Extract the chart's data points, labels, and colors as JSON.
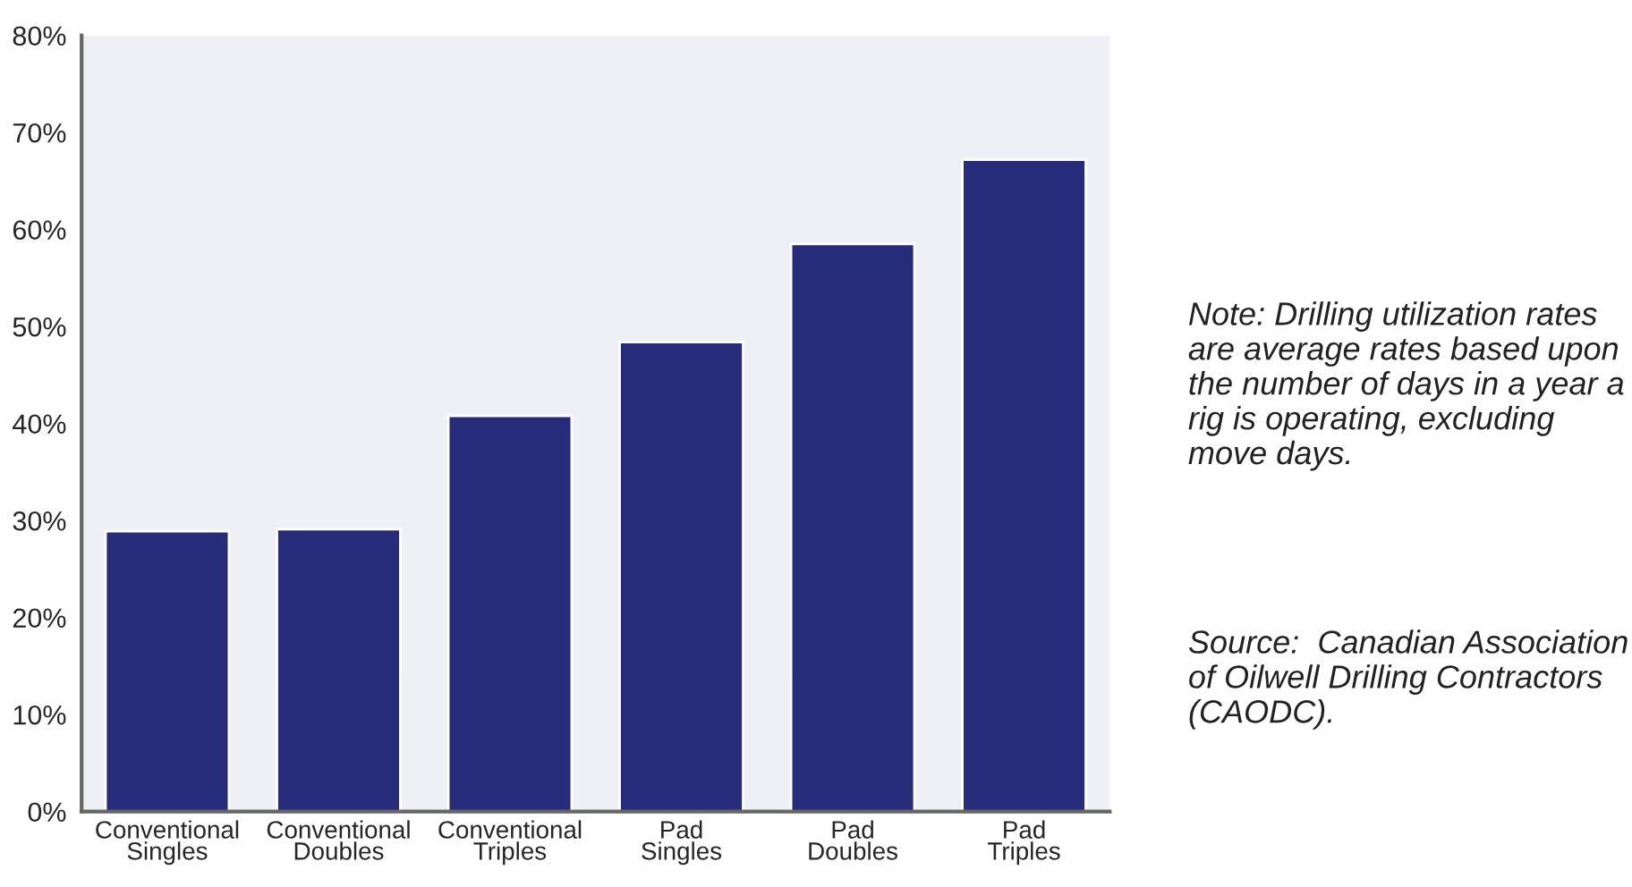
{
  "chart_data": {
    "type": "bar",
    "categories": [
      "Conventional\nSingles",
      "Conventional\nDoubles",
      "Conventional\nTriples",
      "Pad\nSingles",
      "Pad\nDoubles",
      "Pad\nTriples"
    ],
    "values": [
      28.9,
      29.1,
      40.8,
      48.4,
      58.5,
      67.2
    ],
    "color": "#262b7a",
    "ylim": [
      0,
      80
    ],
    "yticks": [
      {
        "value": 0,
        "label": "0%"
      },
      {
        "value": 10,
        "label": "10%"
      },
      {
        "value": 20,
        "label": "20%"
      },
      {
        "value": 30,
        "label": "30%"
      },
      {
        "value": 40,
        "label": "40%"
      },
      {
        "value": 50,
        "label": "50%"
      },
      {
        "value": 60,
        "label": "60%"
      },
      {
        "value": 70,
        "label": "70%"
      },
      {
        "value": 80,
        "label": "80%"
      }
    ],
    "grid": false,
    "annotations": [
      "Note: Drilling utilization rates are average rates based upon the number of days in a year a rig is operating, excluding move days.",
      "Source:  Canadian Association of Oilwell Drilling Contractors (CAODC)."
    ]
  }
}
